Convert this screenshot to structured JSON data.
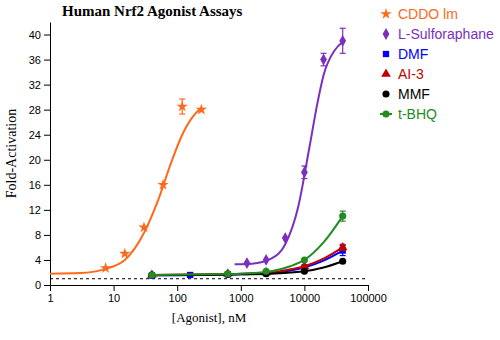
{
  "chart_data": {
    "type": "scatter",
    "title": "Human Nrf2 Agonist Assays",
    "x_label": "[Agonist], nM",
    "y_label": "Fold-Activation",
    "log": "x",
    "xlim": [
      1,
      100000
    ],
    "xticks": [
      1,
      10,
      100,
      1000,
      10000,
      100000
    ],
    "ylim": [
      0,
      42
    ],
    "yticks": [
      0,
      4,
      8,
      12,
      16,
      20,
      24,
      28,
      32,
      36,
      40
    ],
    "baseline": 1,
    "legend": "top-right",
    "series": [
      {
        "name": "CDDO lm",
        "color": "#ff6a1a",
        "marker": "star",
        "x": [
          7.5,
          15,
          30,
          60,
          120,
          240
        ],
        "values": [
          2.7,
          5,
          9.2,
          16,
          28.5,
          28
        ],
        "errors": [
          null,
          null,
          null,
          null,
          1.2,
          null
        ],
        "fit": {
          "x": [
            1,
            3,
            7,
            15,
            30,
            50,
            80,
            120,
            180,
            240
          ],
          "values": [
            1.8,
            1.9,
            2.5,
            4,
            8.3,
            13.5,
            19.5,
            24,
            27,
            28.3
          ]
        }
      },
      {
        "name": "L-Sulforaphane",
        "color": "#7b2fbe",
        "marker": "diamond",
        "x": [
          1250,
          2500,
          5000,
          10000,
          20000,
          40000
        ],
        "values": [
          3.5,
          4,
          7.5,
          18,
          36,
          39
        ],
        "errors": [
          null,
          null,
          null,
          1,
          1,
          2
        ],
        "fit": {
          "x": [
            800,
            1500,
            3000,
            5000,
            8000,
            12000,
            16000,
            20000,
            30000,
            40000
          ],
          "values": [
            3.3,
            3.4,
            4.2,
            6.5,
            12.5,
            22,
            29,
            33.5,
            37.5,
            38.8
          ]
        }
      },
      {
        "name": "DMF",
        "color": "#0000ff",
        "marker": "square",
        "x": [
          40,
          160,
          625,
          2500,
          10000,
          40000
        ],
        "values": [
          1.5,
          1.6,
          1.7,
          1.9,
          2.8,
          5.5
        ],
        "errors": [
          null,
          null,
          null,
          null,
          null,
          0.8
        ],
        "fit": {
          "x": [
            40,
            300,
            1000,
            3000,
            6000,
            10000,
            20000,
            40000
          ],
          "values": [
            1.5,
            1.6,
            1.7,
            1.9,
            2.3,
            2.8,
            3.9,
            5.5
          ]
        }
      },
      {
        "name": "AI-3",
        "color": "#c00000",
        "marker": "triangle",
        "x": [
          40,
          625,
          2500,
          10000,
          40000
        ],
        "values": [
          1.6,
          1.8,
          2,
          3,
          6
        ],
        "errors": [
          null,
          null,
          null,
          null,
          0.5
        ],
        "fit": {
          "x": [
            40,
            300,
            1000,
            3000,
            6000,
            10000,
            20000,
            40000
          ],
          "values": [
            1.6,
            1.7,
            1.8,
            2.0,
            2.5,
            3.0,
            4.2,
            6.0
          ]
        }
      },
      {
        "name": "MMF",
        "color": "#000000",
        "marker": "circle",
        "x": [
          40,
          625,
          2500,
          10000,
          40000
        ],
        "values": [
          1.6,
          1.7,
          1.8,
          2.2,
          3.8
        ],
        "errors": [
          null,
          null,
          null,
          null,
          null
        ],
        "fit": {
          "x": [
            40,
            300,
            1000,
            3000,
            6000,
            10000,
            20000,
            40000
          ],
          "values": [
            1.6,
            1.6,
            1.7,
            1.8,
            2.0,
            2.2,
            2.8,
            3.8
          ]
        }
      },
      {
        "name": "t-BHQ",
        "color": "#228b22",
        "marker": "circle",
        "x": [
          40,
          625,
          2500,
          10000,
          40000
        ],
        "values": [
          1.6,
          1.8,
          2.2,
          4,
          11
        ],
        "errors": [
          null,
          null,
          null,
          null,
          0.8
        ],
        "fit": {
          "x": [
            40,
            300,
            1000,
            3000,
            6000,
            10000,
            20000,
            40000
          ],
          "values": [
            1.6,
            1.7,
            1.8,
            2.2,
            3.0,
            4.0,
            6.8,
            11.0
          ]
        }
      }
    ]
  }
}
